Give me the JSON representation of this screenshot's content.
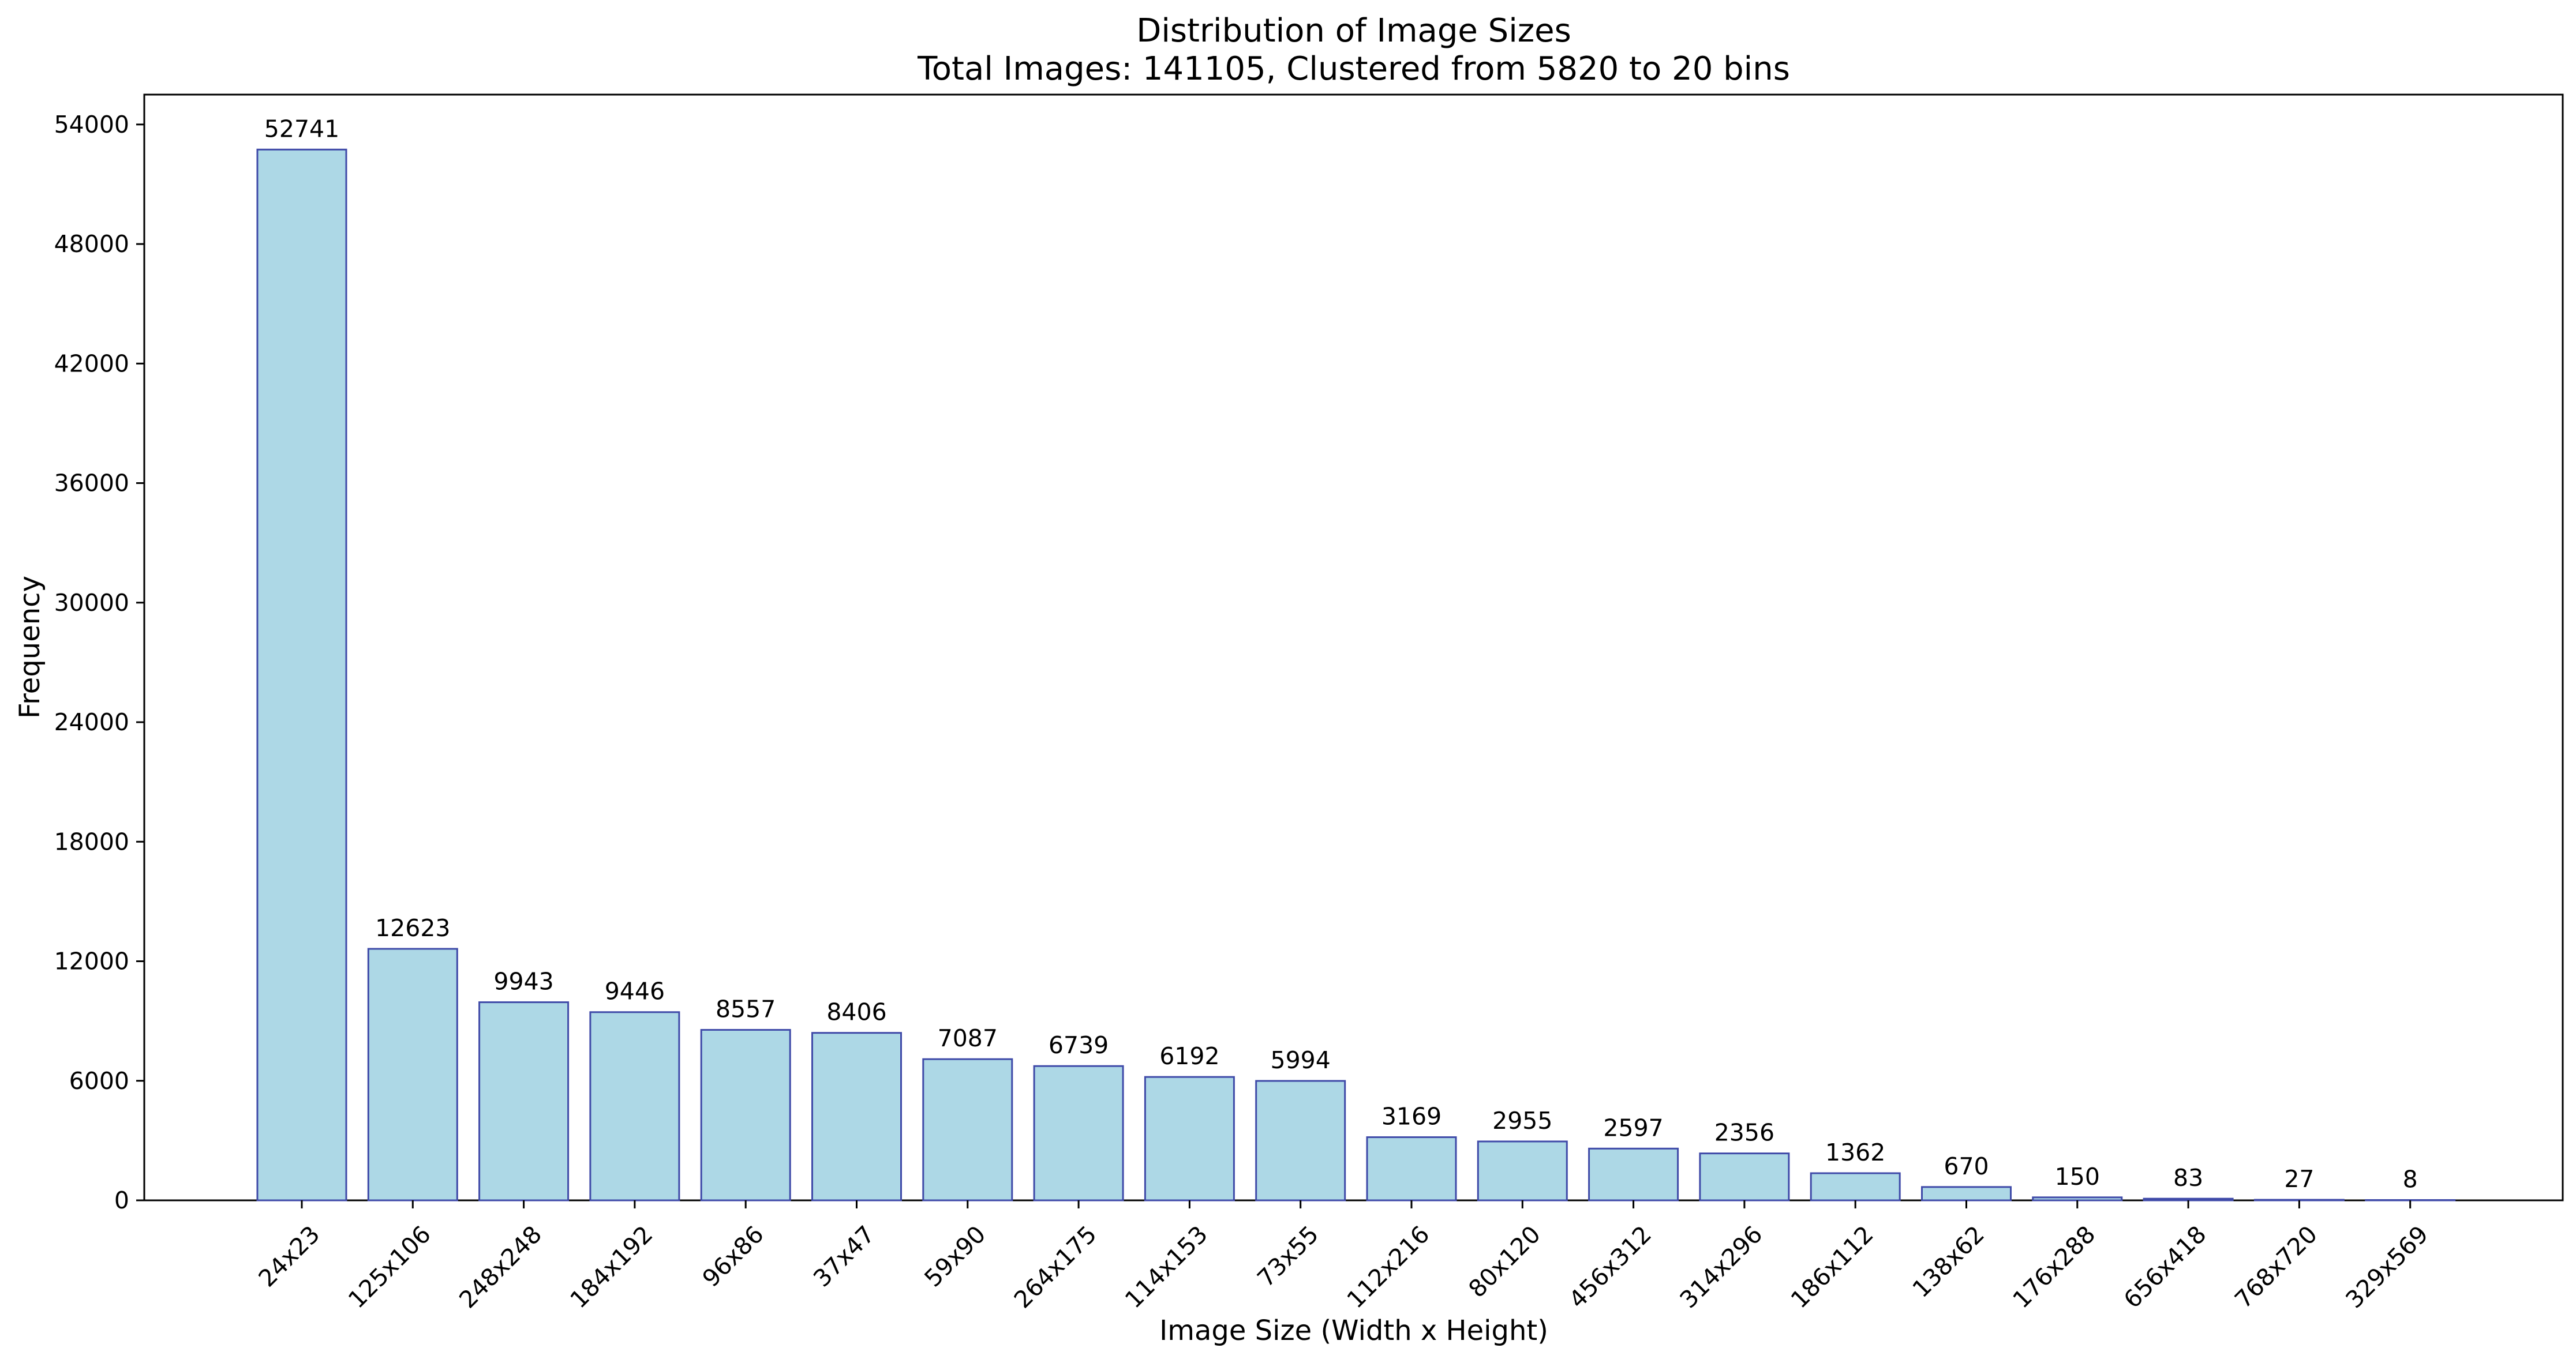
{
  "chart_data": {
    "type": "bar",
    "title": "Distribution of Image Sizes",
    "subtitle": "Total Images: 141105, Clustered from 5820 to 20 bins",
    "xlabel": "Image Size (Width x Height)",
    "ylabel": "Frequency",
    "ylim": [
      0,
      55500
    ],
    "yticks": [
      0,
      6000,
      12000,
      18000,
      24000,
      30000,
      36000,
      42000,
      48000,
      54000
    ],
    "grid": false,
    "legend": "none",
    "bar_color": "#add8e6",
    "bar_edge_color": "#3f4aa8",
    "categories": [
      "24x23",
      "125x106",
      "248x248",
      "184x192",
      "96x86",
      "37x47",
      "59x90",
      "264x175",
      "114x153",
      "73x55",
      "112x216",
      "80x120",
      "456x312",
      "314x296",
      "186x112",
      "138x62",
      "176x288",
      "656x418",
      "768x720",
      "329x569"
    ],
    "values": [
      52741,
      12623,
      9943,
      9446,
      8557,
      8406,
      7087,
      6739,
      6192,
      5994,
      3169,
      2955,
      2597,
      2356,
      1362,
      670,
      150,
      83,
      27,
      8
    ],
    "value_labels": [
      "52741",
      "12623",
      "9943",
      "9446",
      "8557",
      "8406",
      "7087",
      "6739",
      "6192",
      "5994",
      "3169",
      "2955",
      "2597",
      "2356",
      "1362",
      "670",
      "150",
      "83",
      "27",
      "8"
    ],
    "ytick_labels": [
      "0",
      "6000",
      "12000",
      "18000",
      "24000",
      "30000",
      "36000",
      "42000",
      "48000",
      "54000"
    ]
  }
}
